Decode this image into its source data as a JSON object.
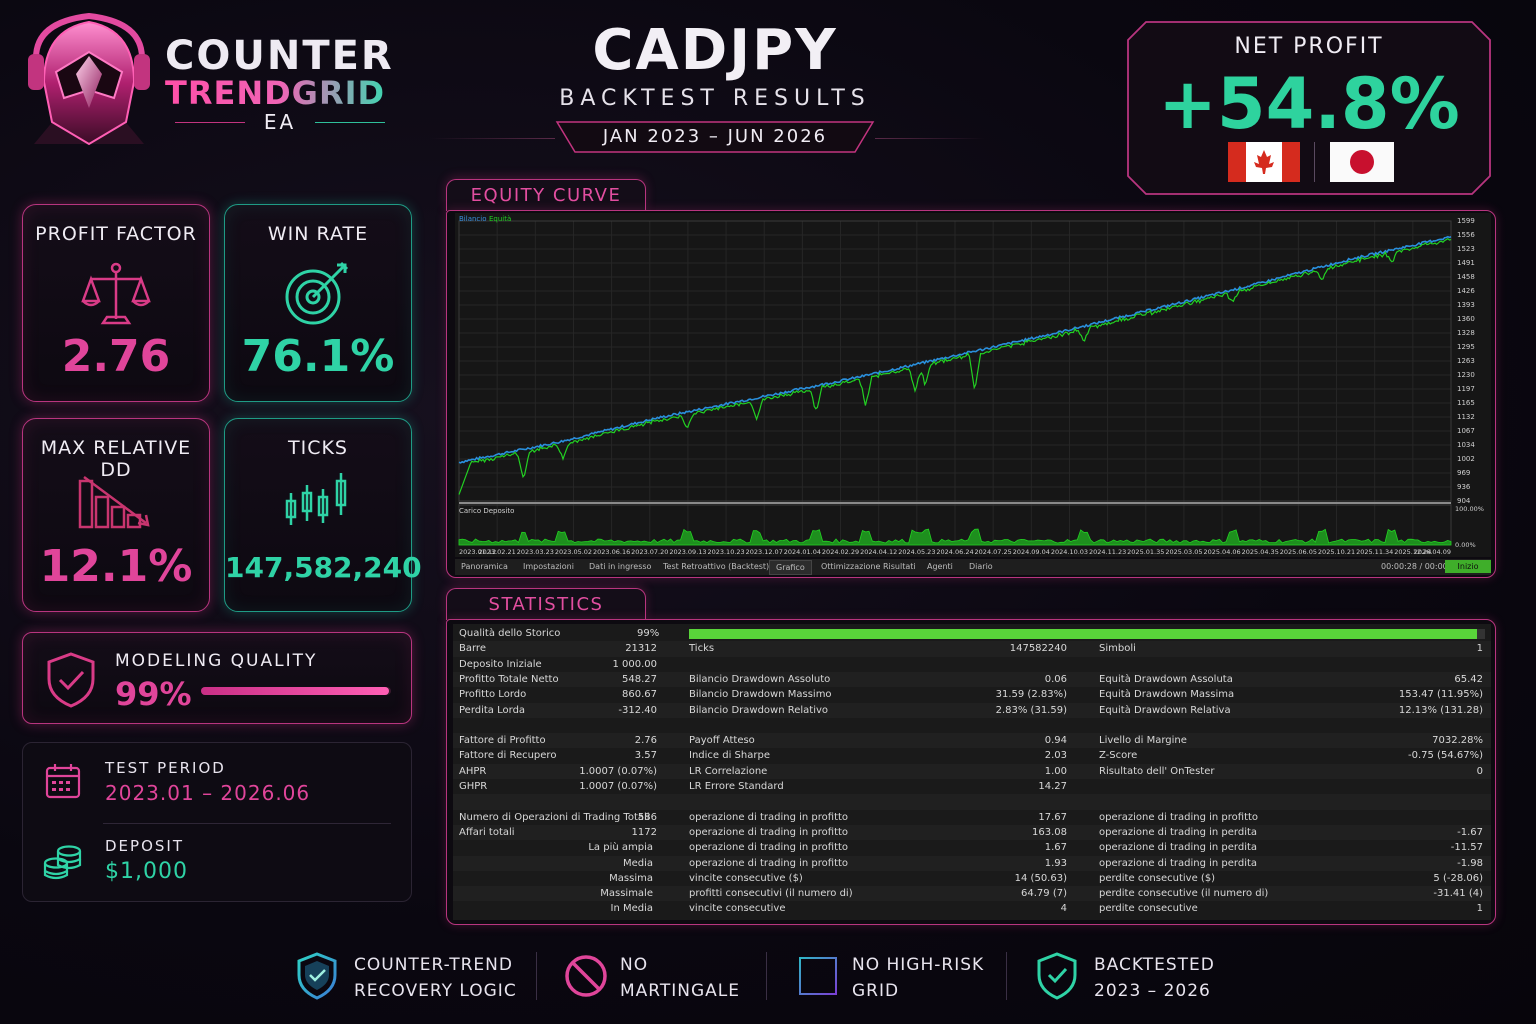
{
  "brand": {
    "line1": "COUNTER",
    "line2": "TRENDGRID",
    "line3": "EA"
  },
  "header": {
    "pair": "CADJPY",
    "subtitle": "BACKTEST RESULTS",
    "range": "JAN 2023 – JUN 2026"
  },
  "net_profit": {
    "label": "NET PROFIT",
    "value": "+54.8%",
    "flags": [
      "canada-flag-icon",
      "japan-flag-icon"
    ]
  },
  "kpis": [
    {
      "title": "PROFIT FACTOR",
      "value": "2.76",
      "icon": "scales-icon",
      "color": "#e0459a"
    },
    {
      "title": "WIN RATE",
      "value": "76.1%",
      "icon": "target-icon",
      "color": "#2fd3a6"
    },
    {
      "title": "MAX RELATIVE DD",
      "value": "12.1%",
      "icon": "declining-bars-icon",
      "color": "#e0459a"
    },
    {
      "title": "TICKS",
      "value": "147,582,240",
      "icon": "candlestick-icon",
      "color": "#2fd3a6"
    }
  ],
  "modeling": {
    "label": "MODELING QUALITY",
    "value": "99%",
    "fill": 0.99
  },
  "test_period": {
    "label": "TEST PERIOD",
    "value": "2023.01 – 2026.06"
  },
  "deposit": {
    "label": "DEPOSIT",
    "value": "$1,000"
  },
  "equity": {
    "tab": "EQUITY CURVE",
    "legend_a": "Bilancio",
    "legend_b": "Equità",
    "sub_label": "Carico Deposito",
    "y_ticks": [
      "1599",
      "1556",
      "1523",
      "1491",
      "1458",
      "1426",
      "1393",
      "1360",
      "1328",
      "1295",
      "1263",
      "1230",
      "1197",
      "1165",
      "1132",
      "1067",
      "1034",
      "1002",
      "969",
      "936",
      "904"
    ],
    "sub_ticks": [
      "100.00%",
      "0.00%"
    ],
    "x_ticks": [
      "2023.01.12",
      "2023.02.21",
      "2023.03.23",
      "2023.05.02",
      "2023.06.16",
      "2023.07.20",
      "2023.09.13",
      "2023.10.23",
      "2023.12.07",
      "2024.01.04",
      "2024.02.29",
      "2024.04.12",
      "2024.05.23",
      "2024.06.24",
      "2024.07.25",
      "2024.09.04",
      "2024.10.03",
      "2024.11.23",
      "2025.01.35",
      "2025.03.05",
      "2025.04.06",
      "2025.04.35",
      "2025.06.05",
      "2025.10.21",
      "2025.11.34",
      "2025.12.24",
      "2026.04.09"
    ],
    "tabs": [
      "Panoramica",
      "Impostazioni",
      "Dati in ingresso",
      "Test Retroattivo (Backtest)",
      "Grafico",
      "Ottimizzazione Risultati",
      "Agenti",
      "Diario"
    ],
    "timer": "00:00:28 / 00:00:28",
    "start_button": "Inizio"
  },
  "chart_data": {
    "type": "line",
    "title": "",
    "xlabel": "",
    "ylabel": "",
    "ylim": [
      904,
      1599
    ],
    "x_range": [
      "2023.01.12",
      "2026.04.09"
    ],
    "series": [
      {
        "name": "Bilancio",
        "color": "#2a8fdc",
        "x": [
          0.0,
          0.1,
          0.2,
          0.3,
          0.4,
          0.5,
          0.6,
          0.7,
          0.8,
          0.9,
          1.0
        ],
        "values": [
          1000,
          1050,
          1110,
          1160,
          1210,
          1265,
          1320,
          1380,
          1440,
          1505,
          1560
        ]
      },
      {
        "name": "Equità",
        "color": "#22d022",
        "x": [
          0.0,
          0.02,
          0.06,
          0.1,
          0.12,
          0.2,
          0.27,
          0.3,
          0.4,
          0.45,
          0.51,
          0.62,
          0.73,
          0.87,
          0.94,
          1.0
        ],
        "values": [
          930,
          1000,
          965,
          1030,
          1005,
          1100,
          1060,
          1150,
          1150,
          1160,
          1120,
          1300,
          1380,
          1470,
          1520,
          1560
        ]
      }
    ],
    "secondary_series": {
      "name": "Carico Deposito",
      "range": [
        "0.00%",
        "100.00%"
      ]
    }
  },
  "statistics": {
    "tab": "STATISTICS",
    "quality_label": "Qualità dello Storico",
    "quality_value": "99%",
    "quality_fill": 0.99,
    "rows": [
      [
        "Barre",
        "21312",
        "Ticks",
        "147582240",
        "Simboli",
        "1"
      ],
      [
        "Deposito Iniziale",
        "1 000.00",
        "",
        "",
        "",
        ""
      ],
      [
        "Profitto Totale Netto",
        "548.27",
        "Bilancio Drawdown Assoluto",
        "0.06",
        "Equità Drawdown Assoluta",
        "65.42"
      ],
      [
        "Profitto Lordo",
        "860.67",
        "Bilancio Drawdown Massimo",
        "31.59 (2.83%)",
        "Equità Drawdown Massima",
        "153.47 (11.95%)"
      ],
      [
        "Perdita Lorda",
        "-312.40",
        "Bilancio Drawdown Relativo",
        "2.83% (31.59)",
        "Equità Drawdown Relativa",
        "12.13% (131.28)"
      ],
      [
        "",
        "",
        "",
        "",
        "",
        ""
      ],
      [
        "Fattore di Profitto",
        "2.76",
        "Payoff Atteso",
        "0.94",
        "Livello di Margine",
        "7032.28%"
      ],
      [
        "Fattore di Recupero",
        "3.57",
        "Indice di Sharpe",
        "2.03",
        "Z-Score",
        "-0.75 (54.67%)"
      ],
      [
        "AHPR",
        "1.0007 (0.07%)",
        "LR Correlazione",
        "1.00",
        "Risultato dell' OnTester",
        "0"
      ],
      [
        "GHPR",
        "1.0007 (0.07%)",
        "LR Errore Standard",
        "14.27",
        "",
        ""
      ],
      [
        "",
        "",
        "",
        "",
        "",
        ""
      ],
      [
        "Numero di Operazioni di Trading Totali",
        "586",
        "operazione di trading in profitto",
        "17.67",
        "operazione di trading in profitto",
        ""
      ],
      [
        "Affari totali",
        "1172",
        "operazione di trading in profitto",
        "163.08",
        "operazione di trading in perdita",
        "-1.67"
      ],
      [
        "La più ampia",
        "",
        "operazione di trading in profitto",
        "1.67",
        "operazione di trading in perdita",
        "-11.57"
      ],
      [
        "Media",
        "",
        "operazione di trading in profitto",
        "1.93",
        "operazione di trading in perdita",
        "-1.98"
      ],
      [
        "Massima",
        "",
        "vincite consecutive ($)",
        "14 (50.63)",
        "perdite consecutive ($)",
        "5 (-28.06)"
      ],
      [
        "Massimale",
        "",
        "profitti consecutivi (il numero di)",
        "64.79 (7)",
        "perdite consecutive (il numero di)",
        "-31.41 (4)"
      ],
      [
        "In Media",
        "",
        "vincite consecutive",
        "4",
        "perdite consecutive",
        "1"
      ]
    ]
  },
  "features": [
    {
      "line1": "COUNTER-TREND",
      "line2": "RECOVERY LOGIC",
      "icon": "shield-check-icon"
    },
    {
      "line1": "NO",
      "line2": "MARTINGALE",
      "icon": "no-sign-icon"
    },
    {
      "line1": "NO HIGH-RISK",
      "line2": "GRID",
      "icon": "grid-icon"
    },
    {
      "line1": "BACKTESTED",
      "line2": "2023 – 2026",
      "icon": "shield-check-icon"
    }
  ]
}
